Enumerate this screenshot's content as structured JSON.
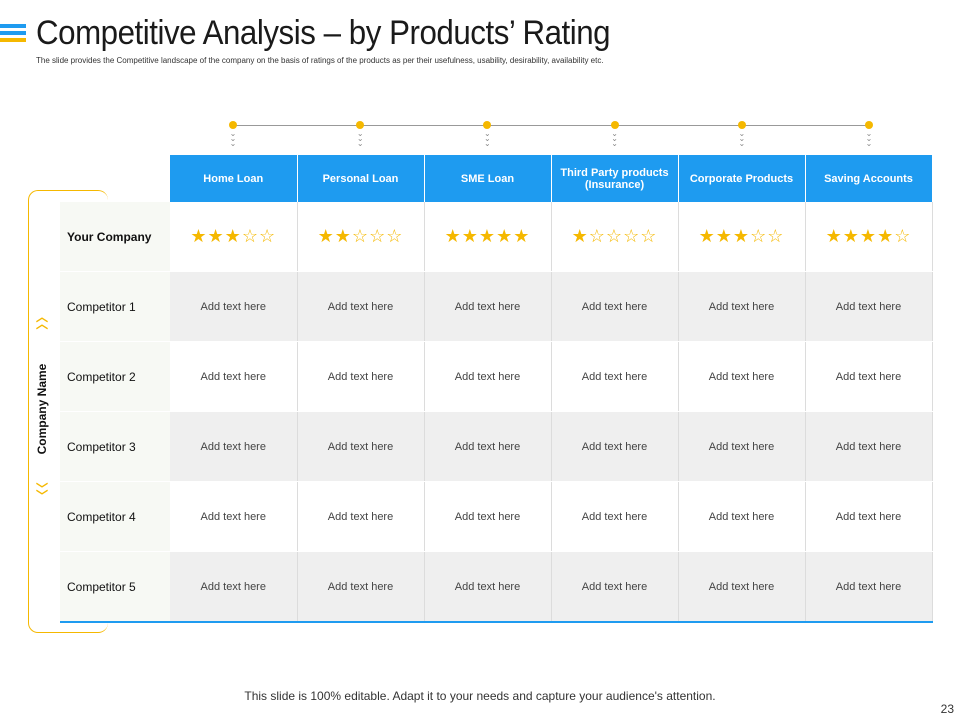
{
  "title": "Competitive Analysis – by Products’ Rating",
  "subtitle": "The slide provides the Competitive landscape of the company on the basis of ratings of the products as per their usefulness, usability, desirability, availability etc.",
  "side_label": "Company Name",
  "columns": [
    "Home Loan",
    "Personal Loan",
    "SME Loan",
    "Third Party products (Insurance)",
    "Corporate Products",
    "Saving Accounts"
  ],
  "rows": [
    {
      "name": "Your Company",
      "cells": [
        "★★★☆☆",
        "★★☆☆☆",
        "★★★★★",
        "★☆☆☆☆",
        "★★★☆☆",
        "★★★★☆"
      ]
    },
    {
      "name": "Competitor 1",
      "cells": [
        "Add text here",
        "Add text here",
        "Add text here",
        "Add text here",
        "Add text here",
        "Add text here"
      ]
    },
    {
      "name": "Competitor 2",
      "cells": [
        "Add text here",
        "Add text here",
        "Add text here",
        "Add text here",
        "Add text here",
        "Add text here"
      ]
    },
    {
      "name": "Competitor 3",
      "cells": [
        "Add text here",
        "Add text here",
        "Add text here",
        "Add text here",
        "Add text here",
        "Add text here"
      ]
    },
    {
      "name": "Competitor 4",
      "cells": [
        "Add text here",
        "Add text here",
        "Add text here",
        "Add text here",
        "Add text here",
        "Add text here"
      ]
    },
    {
      "name": "Competitor 5",
      "cells": [
        "Add text here",
        "Add text here",
        "Add text here",
        "Add text here",
        "Add text here",
        "Add text here"
      ]
    }
  ],
  "ratings": {
    "Home Loan": 3,
    "Personal Loan": 2,
    "SME Loan": 5,
    "Third Party products (Insurance)": 1,
    "Corporate Products": 3,
    "Saving Accounts": 4
  },
  "footer": "This slide is 100% editable. Adapt it to your needs and capture your audience's attention.",
  "page_number": "23",
  "colors": {
    "accent_blue": "#1e9bf0",
    "accent_yellow": "#f5b800",
    "row_grey": "#efefef"
  },
  "icons": [
    "double-chevron-up-icon",
    "double-chevron-down-icon",
    "star-icon",
    "timeline-dot-icon"
  ]
}
